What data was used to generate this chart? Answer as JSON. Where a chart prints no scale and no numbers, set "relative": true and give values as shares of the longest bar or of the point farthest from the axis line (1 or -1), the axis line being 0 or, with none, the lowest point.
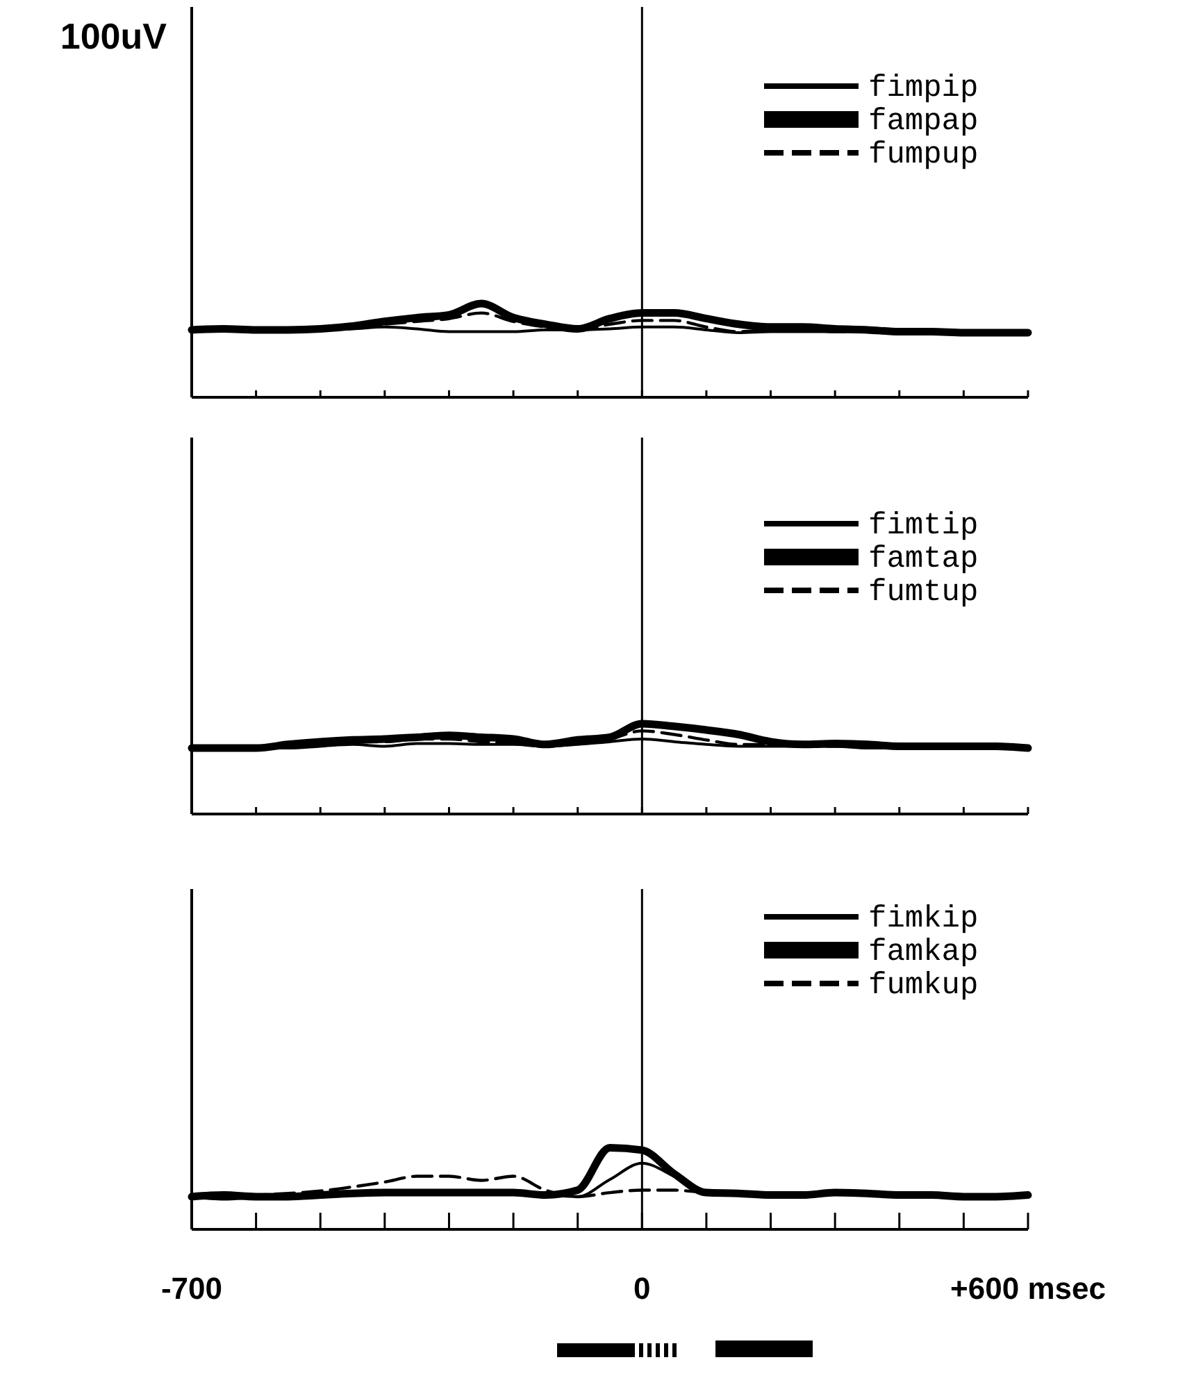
{
  "chart_data": [
    {
      "type": "line",
      "relative": true,
      "legend": "top right",
      "tick_labels": false,
      "annotations": [
        "100uV"
      ],
      "x": [
        -700,
        -650,
        -600,
        -550,
        -500,
        -450,
        -400,
        -350,
        -300,
        -250,
        -200,
        -150,
        -100,
        -50,
        0,
        50,
        100,
        150,
        200,
        250,
        300,
        350,
        400,
        450,
        500,
        550,
        600
      ],
      "xlim": [
        -700,
        600
      ],
      "xticks": [
        {
          "value": -700,
          "label": null
        },
        {
          "value": -600,
          "label": null
        },
        {
          "value": -500,
          "label": null
        },
        {
          "value": -400,
          "label": null
        },
        {
          "value": -300,
          "label": null
        },
        {
          "value": -200,
          "label": null
        },
        {
          "value": -100,
          "label": null
        },
        {
          "value": 0,
          "label": null
        },
        {
          "value": 100,
          "label": null
        },
        {
          "value": 200,
          "label": null
        },
        {
          "value": 300,
          "label": null
        },
        {
          "value": 400,
          "label": null
        },
        {
          "value": 500,
          "label": null
        },
        {
          "value": 600,
          "label": null
        }
      ],
      "ref_lines": [
        {
          "axis": "x",
          "value": 0,
          "color": "#000000"
        }
      ],
      "series": [
        {
          "name": "fimpip",
          "color": "#000000",
          "line_style": "solid",
          "values": [
            0.72,
            0.72,
            0.7,
            0.7,
            0.72,
            0.73,
            0.75,
            0.73,
            0.7,
            0.7,
            0.7,
            0.72,
            0.72,
            0.73,
            0.75,
            0.75,
            0.72,
            0.69,
            0.7,
            0.7,
            0.7,
            0.7,
            0.69,
            0.69,
            0.69,
            0.67,
            0.67
          ]
        },
        {
          "name": "fampap",
          "color": "#000000",
          "line_style": "solid",
          "values": [
            0.72,
            0.73,
            0.72,
            0.72,
            0.73,
            0.76,
            0.81,
            0.85,
            0.88,
            1,
            0.85,
            0.78,
            0.73,
            0.84,
            0.9,
            0.9,
            0.84,
            0.78,
            0.75,
            0.75,
            0.73,
            0.72,
            0.7,
            0.7,
            0.69,
            0.69,
            0.69
          ]
        },
        {
          "name": "fumpup",
          "color": "#000000",
          "line_style": "dashed",
          "values": [
            0.72,
            0.72,
            0.72,
            0.72,
            0.72,
            0.75,
            0.78,
            0.81,
            0.84,
            0.9,
            0.81,
            0.75,
            0.72,
            0.78,
            0.82,
            0.82,
            0.75,
            0.7,
            0.72,
            0.72,
            0.7,
            0.7,
            0.69,
            0.69,
            0.69,
            0.69,
            0.69
          ]
        }
      ]
    },
    {
      "type": "line",
      "relative": true,
      "legend": "top right",
      "tick_labels": false,
      "x": [
        -700,
        -650,
        -600,
        -550,
        -500,
        -450,
        -400,
        -350,
        -300,
        -250,
        -200,
        -150,
        -100,
        -50,
        0,
        50,
        100,
        150,
        200,
        250,
        300,
        350,
        400,
        450,
        500,
        550,
        600
      ],
      "xlim": [
        -700,
        600
      ],
      "xticks": [
        {
          "value": -700,
          "label": null
        },
        {
          "value": -600,
          "label": null
        },
        {
          "value": -500,
          "label": null
        },
        {
          "value": -400,
          "label": null
        },
        {
          "value": -300,
          "label": null
        },
        {
          "value": -200,
          "label": null
        },
        {
          "value": -100,
          "label": null
        },
        {
          "value": 0,
          "label": null
        },
        {
          "value": 100,
          "label": null
        },
        {
          "value": 200,
          "label": null
        },
        {
          "value": 300,
          "label": null
        },
        {
          "value": 400,
          "label": null
        },
        {
          "value": 500,
          "label": null
        },
        {
          "value": 600,
          "label": null
        }
      ],
      "ref_lines": [
        {
          "axis": "x",
          "value": 0,
          "color": "#000000"
        }
      ],
      "series": [
        {
          "name": "fimtip",
          "color": "#000000",
          "line_style": "solid",
          "values": [
            0.73,
            0.73,
            0.73,
            0.73,
            0.75,
            0.77,
            0.75,
            0.78,
            0.78,
            0.77,
            0.77,
            0.75,
            0.77,
            0.8,
            0.83,
            0.8,
            0.77,
            0.75,
            0.75,
            0.75,
            0.75,
            0.73,
            0.73,
            0.73,
            0.73,
            0.73,
            0.73
          ]
        },
        {
          "name": "famtap",
          "color": "#000000",
          "line_style": "solid",
          "values": [
            0.73,
            0.73,
            0.73,
            0.77,
            0.8,
            0.82,
            0.83,
            0.85,
            0.87,
            0.85,
            0.83,
            0.77,
            0.82,
            0.85,
            1,
            0.97,
            0.93,
            0.88,
            0.8,
            0.77,
            0.78,
            0.77,
            0.75,
            0.75,
            0.75,
            0.75,
            0.73
          ]
        },
        {
          "name": "fumtup",
          "color": "#000000",
          "line_style": "dashed",
          "values": [
            0.73,
            0.73,
            0.73,
            0.75,
            0.78,
            0.8,
            0.8,
            0.83,
            0.83,
            0.8,
            0.78,
            0.75,
            0.78,
            0.83,
            0.92,
            0.88,
            0.82,
            0.77,
            0.77,
            0.75,
            0.75,
            0.75,
            0.73,
            0.73,
            0.73,
            0.73,
            0.73
          ]
        }
      ]
    },
    {
      "type": "line",
      "relative": true,
      "legend": "top right",
      "tick_labels": "x",
      "x": [
        -700,
        -650,
        -600,
        -550,
        -500,
        -450,
        -400,
        -350,
        -300,
        -250,
        -200,
        -150,
        -100,
        -50,
        0,
        50,
        100,
        150,
        200,
        250,
        300,
        350,
        400,
        450,
        500,
        550,
        600
      ],
      "xlim": [
        -700,
        600
      ],
      "xticks": [
        {
          "value": -700,
          "label": "-700"
        },
        {
          "value": -600,
          "label": null
        },
        {
          "value": -500,
          "label": null
        },
        {
          "value": -400,
          "label": null
        },
        {
          "value": -300,
          "label": null
        },
        {
          "value": -200,
          "label": null
        },
        {
          "value": -100,
          "label": null
        },
        0,
        {
          "value": 100,
          "label": null
        },
        {
          "value": 200,
          "label": null
        },
        {
          "value": 300,
          "label": null
        },
        {
          "value": 400,
          "label": null
        },
        {
          "value": 500,
          "label": null
        },
        {
          "value": 600,
          "label": "+600 msec"
        }
      ],
      "ref_lines": [
        {
          "axis": "x",
          "value": 0,
          "color": "#000000"
        }
      ],
      "series": [
        {
          "name": "fimkip",
          "color": "#000000",
          "line_style": "solid",
          "values": [
            0.4,
            0.37,
            0.39,
            0.4,
            0.4,
            0.42,
            0.44,
            0.44,
            0.44,
            0.44,
            0.44,
            0.42,
            0.4,
            0.61,
            0.81,
            0.65,
            0.45,
            0.44,
            0.42,
            0.42,
            0.44,
            0.44,
            0.42,
            0.42,
            0.4,
            0.4,
            0.42
          ]
        },
        {
          "name": "famkap",
          "color": "#000000",
          "line_style": "solid",
          "values": [
            0.4,
            0.42,
            0.4,
            0.4,
            0.42,
            0.44,
            0.45,
            0.45,
            0.45,
            0.45,
            0.45,
            0.42,
            0.48,
            1,
            0.97,
            0.68,
            0.45,
            0.44,
            0.42,
            0.42,
            0.45,
            0.44,
            0.42,
            0.42,
            0.4,
            0.4,
            0.42
          ]
        },
        {
          "name": "fumkup",
          "color": "#000000",
          "line_style": "dashed",
          "values": [
            0.4,
            0.4,
            0.42,
            0.44,
            0.47,
            0.52,
            0.58,
            0.65,
            0.65,
            0.6,
            0.65,
            0.48,
            0.4,
            0.45,
            0.48,
            0.48,
            0.45,
            0.44,
            0.45,
            0.45,
            0.44,
            0.44,
            0.42,
            0.42,
            0.4,
            0.4,
            0.42
          ]
        }
      ]
    }
  ]
}
